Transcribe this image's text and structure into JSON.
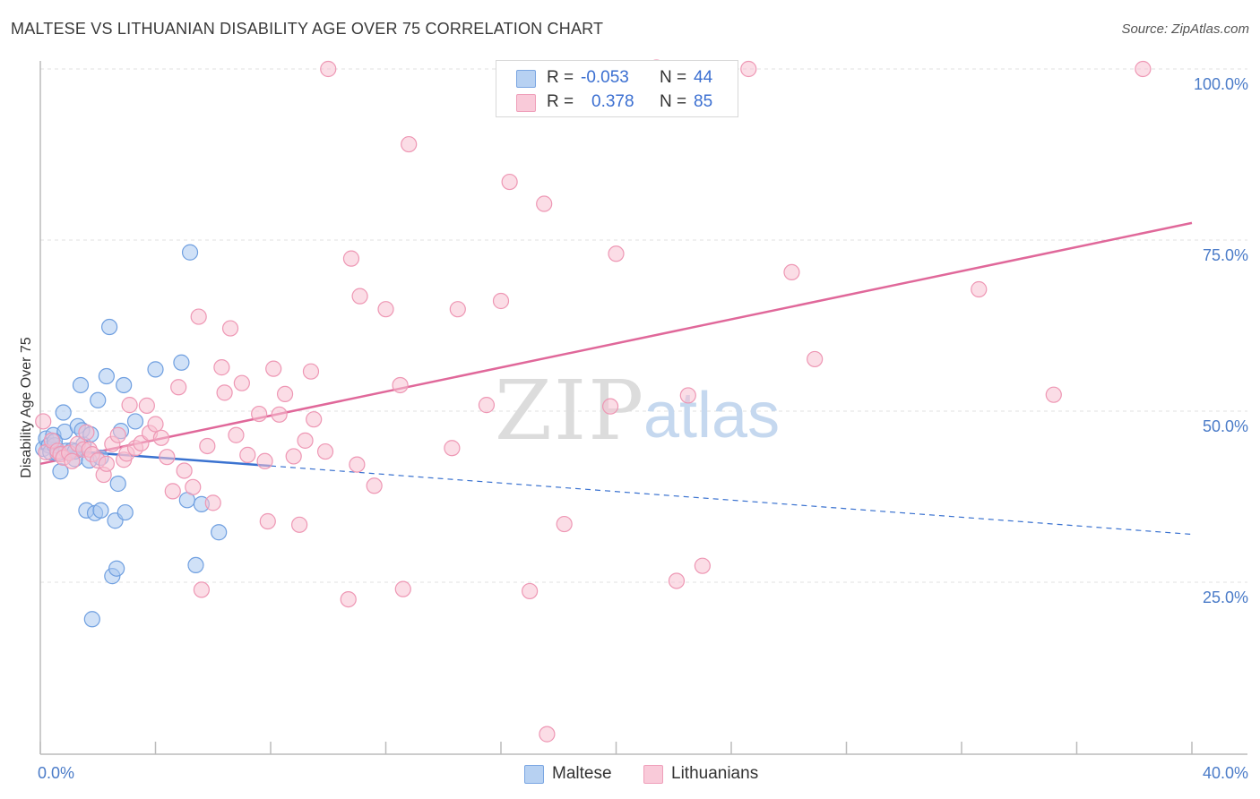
{
  "title": "MALTESE VS LITHUANIAN DISABILITY AGE OVER 75 CORRELATION CHART",
  "source": "Source: ZipAtlas.com",
  "watermark": {
    "zip": "ZIP",
    "atlas": "atlas"
  },
  "legend": {
    "rows": [
      {
        "r_label": "R =",
        "r_value": "-0.053",
        "n_label": "N =",
        "n_value": "44"
      },
      {
        "r_label": "R =",
        "r_value": "0.378",
        "n_label": "N =",
        "n_value": "85"
      }
    ]
  },
  "bottom_legend": {
    "maltese": "Maltese",
    "lithuanians": "Lithuanians"
  },
  "colors": {
    "maltese_fill": "#a9c8f0",
    "maltese_stroke": "#6f9fe0",
    "maltese_line": "#3a72d0",
    "lithuanian_fill": "#f7c1d2",
    "lithuanian_stroke": "#ee97b4",
    "lithuanian_line": "#e0689a",
    "tick_text": "#4a7bc8",
    "grid": "#e2e2e2"
  },
  "chart_data": {
    "type": "scatter",
    "title": "MALTESE VS LITHUANIAN DISABILITY AGE OVER 75 CORRELATION CHART",
    "xlabel": "",
    "ylabel": "Disability Age Over 75",
    "xlim": [
      0,
      40
    ],
    "ylim": [
      0,
      100
    ],
    "x_tick_labels": [
      "0.0%",
      "40.0%"
    ],
    "y_tick_labels": [
      "100.0%",
      "75.0%",
      "50.0%",
      "25.0%"
    ],
    "y_ticks": [
      100,
      75,
      50,
      25
    ],
    "grid": "horizontal dashed",
    "series": [
      {
        "name": "Maltese",
        "r": -0.053,
        "n": 44,
        "trend": {
          "solid": [
            [
              0,
              44.5
            ],
            [
              8,
              42
            ]
          ],
          "dashed": [
            [
              8,
              42
            ],
            [
              40,
              32
            ]
          ]
        },
        "points": [
          [
            0.1,
            44.5
          ],
          [
            0.2,
            46
          ],
          [
            0.3,
            45
          ],
          [
            0.35,
            44
          ],
          [
            0.45,
            46.5
          ],
          [
            0.5,
            45
          ],
          [
            0.6,
            43.8
          ],
          [
            0.7,
            41.2
          ],
          [
            0.8,
            49.8
          ],
          [
            0.85,
            47
          ],
          [
            0.9,
            44.2
          ],
          [
            1.1,
            44.3
          ],
          [
            1.2,
            43
          ],
          [
            1.3,
            47.8
          ],
          [
            1.4,
            53.8
          ],
          [
            1.45,
            47.2
          ],
          [
            1.5,
            45.1
          ],
          [
            1.6,
            35.5
          ],
          [
            1.7,
            42.8
          ],
          [
            1.75,
            46.6
          ],
          [
            1.8,
            19.6
          ],
          [
            1.9,
            35.1
          ],
          [
            2.0,
            51.6
          ],
          [
            2.1,
            43.2
          ],
          [
            2.1,
            35.5
          ],
          [
            2.3,
            55.1
          ],
          [
            2.4,
            62.3
          ],
          [
            2.5,
            25.9
          ],
          [
            2.6,
            34
          ],
          [
            2.65,
            27
          ],
          [
            2.7,
            39.4
          ],
          [
            2.8,
            47.1
          ],
          [
            2.9,
            53.8
          ],
          [
            2.95,
            35.2
          ],
          [
            3.3,
            48.5
          ],
          [
            4.0,
            56.1
          ],
          [
            4.9,
            57.1
          ],
          [
            5.1,
            37
          ],
          [
            5.2,
            73.2
          ],
          [
            5.4,
            27.5
          ],
          [
            5.6,
            36.4
          ],
          [
            6.2,
            32.3
          ],
          [
            1.2,
            44.1
          ],
          [
            0.5,
            45.6
          ]
        ]
      },
      {
        "name": "Lithuanians",
        "r": 0.378,
        "n": 85,
        "trend": {
          "solid": [
            [
              0,
              42.3
            ],
            [
              40,
              77.5
            ]
          ]
        },
        "points": [
          [
            0.1,
            48.5
          ],
          [
            0.2,
            44
          ],
          [
            0.4,
            45.7
          ],
          [
            0.6,
            44.2
          ],
          [
            0.7,
            43.7
          ],
          [
            0.8,
            43.2
          ],
          [
            1.0,
            43.9
          ],
          [
            1.1,
            42.7
          ],
          [
            1.3,
            45.2
          ],
          [
            1.5,
            44.4
          ],
          [
            1.6,
            46.9
          ],
          [
            1.7,
            44.4
          ],
          [
            1.8,
            43.7
          ],
          [
            2.0,
            42.8
          ],
          [
            2.2,
            40.7
          ],
          [
            2.3,
            42.3
          ],
          [
            2.5,
            45.2
          ],
          [
            2.7,
            46.5
          ],
          [
            2.9,
            42.9
          ],
          [
            3.0,
            43.8
          ],
          [
            3.1,
            50.9
          ],
          [
            3.3,
            44.6
          ],
          [
            3.5,
            45.3
          ],
          [
            3.7,
            50.8
          ],
          [
            3.8,
            46.8
          ],
          [
            4.0,
            48.1
          ],
          [
            4.2,
            46.1
          ],
          [
            4.4,
            43.3
          ],
          [
            4.6,
            38.3
          ],
          [
            4.8,
            53.5
          ],
          [
            5.0,
            41.3
          ],
          [
            5.3,
            38.9
          ],
          [
            5.5,
            63.8
          ],
          [
            5.6,
            23.9
          ],
          [
            5.8,
            44.9
          ],
          [
            6.0,
            36.6
          ],
          [
            6.3,
            56.4
          ],
          [
            6.4,
            52.7
          ],
          [
            6.6,
            62.1
          ],
          [
            6.8,
            46.5
          ],
          [
            7.0,
            54.1
          ],
          [
            7.2,
            43.6
          ],
          [
            7.6,
            49.6
          ],
          [
            7.8,
            42.7
          ],
          [
            7.9,
            33.9
          ],
          [
            8.1,
            56.2
          ],
          [
            8.3,
            49.5
          ],
          [
            8.5,
            52.5
          ],
          [
            8.8,
            43.4
          ],
          [
            9.0,
            33.4
          ],
          [
            9.2,
            45.7
          ],
          [
            9.4,
            55.8
          ],
          [
            9.5,
            48.8
          ],
          [
            9.9,
            44.1
          ],
          [
            10.0,
            100
          ],
          [
            10.7,
            22.5
          ],
          [
            10.8,
            72.3
          ],
          [
            11.0,
            42.2
          ],
          [
            11.1,
            66.8
          ],
          [
            11.6,
            39.1
          ],
          [
            12.0,
            64.9
          ],
          [
            12.5,
            53.8
          ],
          [
            12.6,
            24
          ],
          [
            12.8,
            89
          ],
          [
            14.3,
            44.6
          ],
          [
            14.5,
            64.9
          ],
          [
            15.5,
            50.9
          ],
          [
            16.0,
            66.1
          ],
          [
            16.3,
            83.5
          ],
          [
            17.0,
            23.7
          ],
          [
            17.5,
            80.3
          ],
          [
            17.6,
            2.8
          ],
          [
            18.2,
            33.5
          ],
          [
            19.8,
            50.7
          ],
          [
            20.0,
            73
          ],
          [
            21.4,
            100.2
          ],
          [
            22.1,
            25.2
          ],
          [
            22.5,
            52.3
          ],
          [
            23.0,
            27.4
          ],
          [
            24.6,
            100
          ],
          [
            26.1,
            70.3
          ],
          [
            26.9,
            57.6
          ],
          [
            32.6,
            67.8
          ],
          [
            35.2,
            52.4
          ],
          [
            38.3,
            100
          ]
        ]
      }
    ]
  }
}
